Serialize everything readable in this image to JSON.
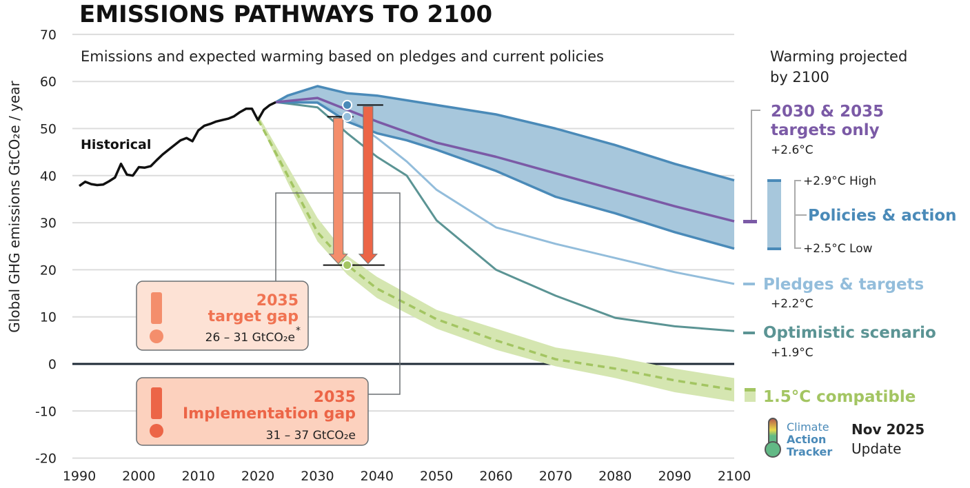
{
  "title": "EMISSIONS PATHWAYS TO 2100",
  "subtitle": "Emissions and expected warming based on pledges and current policies",
  "legend": {
    "header_line1": "Warming projected",
    "header_line2": "by 2100",
    "targets_line1": "2030 & 2035",
    "targets_line2": "targets only",
    "targets_temp": "+2.6°C",
    "policies_high": "+2.9°C High",
    "policies_label": "Policies & action",
    "policies_low": "+2.5°C Low",
    "pledges_label": "Pledges & targets",
    "pledges_temp": "+2.2°C",
    "optimistic_label": "Optimistic scenario",
    "optimistic_temp": "+1.9°C",
    "compatible_label": "1.5°C compatible"
  },
  "gaps": {
    "target": {
      "year": "2035",
      "label": "target gap",
      "range": "26 – 31  GtCO₂e",
      "footnote": "*"
    },
    "implementation": {
      "year": "2035",
      "label": "Implementation gap",
      "range": "31 – 37  GtCO₂e"
    }
  },
  "branding": {
    "logo_line1": "Climate",
    "logo_line2": "Action",
    "logo_line3": "Tracker",
    "date": "Nov 2025",
    "update": "Update"
  },
  "colors": {
    "historical": "#111111",
    "policies_band": "#a7c7dc",
    "policies_edge": "#4a8ab8",
    "targets": "#7b5aa6",
    "pledges": "#93bddb",
    "optimistic": "#5b9494",
    "compatible": "#a3c562",
    "compatible_band": "#d5e6b1",
    "target_gap": "#f48e6c",
    "implementation_gap": "#ec6547"
  },
  "chart_data": {
    "type": "line",
    "title": "EMISSIONS PATHWAYS TO 2100",
    "ylabel": "Global GHG emissions  GtCO₂e / year",
    "xlim": [
      1990,
      2100
    ],
    "ylim": [
      -20,
      70
    ],
    "xticks": [
      "1990",
      "2000",
      "2010",
      "2020",
      "2030",
      "2040",
      "2050",
      "2060",
      "2070",
      "2080",
      "2090",
      "2100"
    ],
    "yticks": [
      "70",
      "60",
      "50",
      "40",
      "30",
      "20",
      "10",
      "0",
      "-10",
      "-20"
    ],
    "grid": true,
    "series": [
      {
        "name": "Historical",
        "key": "historical",
        "x": [
          1990,
          1991,
          1992,
          1993,
          1994,
          1995,
          1996,
          1997,
          1998,
          1999,
          2000,
          2001,
          2002,
          2003,
          2004,
          2005,
          2006,
          2007,
          2008,
          2009,
          2010,
          2011,
          2012,
          2013,
          2014,
          2015,
          2016,
          2017,
          2018,
          2019,
          2020,
          2021,
          2022,
          2023
        ],
        "y": [
          37.8,
          38.7,
          38.2,
          38,
          38.1,
          38.8,
          39.6,
          42.5,
          40.2,
          40,
          41.8,
          41.7,
          42,
          43.3,
          44.5,
          45.5,
          46.5,
          47.5,
          48,
          47.3,
          49.6,
          50.6,
          51,
          51.5,
          51.8,
          52.1,
          52.6,
          53.5,
          54.2,
          54.2,
          51.8,
          54,
          55,
          55.6
        ]
      },
      {
        "name": "Policies & action (high)",
        "key": "policies_high",
        "x": [
          2023,
          2025,
          2030,
          2035,
          2040,
          2050,
          2060,
          2070,
          2080,
          2090,
          2100
        ],
        "y": [
          55.6,
          57,
          59,
          57.5,
          57,
          55,
          53,
          50,
          46.5,
          42.5,
          39
        ]
      },
      {
        "name": "Policies & action (low)",
        "key": "policies_low",
        "x": [
          2023,
          2030,
          2035,
          2040,
          2045,
          2050,
          2060,
          2070,
          2080,
          2090,
          2100
        ],
        "y": [
          55.6,
          55.5,
          51.5,
          49,
          47.5,
          45.5,
          41,
          35.5,
          32,
          28,
          24.5
        ]
      },
      {
        "name": "2030 & 2035 targets only",
        "key": "targets",
        "x": [
          2023,
          2030,
          2035,
          2040,
          2050,
          2060,
          2070,
          2080,
          2090,
          2100
        ],
        "y": [
          55.6,
          56.5,
          54,
          51.5,
          47,
          44,
          40.5,
          37,
          33.5,
          30.3
        ]
      },
      {
        "name": "Pledges & targets",
        "key": "pledges",
        "x": [
          2023,
          2030,
          2035,
          2040,
          2045,
          2050,
          2060,
          2070,
          2080,
          2090,
          2100
        ],
        "y": [
          55.6,
          55.5,
          52.5,
          48,
          43,
          37,
          29,
          25.5,
          22.5,
          19.5,
          17
        ]
      },
      {
        "name": "Optimistic scenario",
        "key": "optimistic",
        "x": [
          2023,
          2025,
          2030,
          2035,
          2040,
          2045,
          2050,
          2060,
          2070,
          2080,
          2090,
          2100
        ],
        "y": [
          55.6,
          55.3,
          54.5,
          49,
          44,
          40,
          30.5,
          20,
          14.5,
          9.8,
          8,
          7
        ]
      },
      {
        "name": "1.5°C compatible",
        "key": "compatible",
        "x": [
          2020,
          2025,
          2030,
          2035,
          2040,
          2050,
          2060,
          2070,
          2080,
          2090,
          2100
        ],
        "y": [
          52,
          40,
          28,
          21,
          16,
          9.5,
          5,
          1,
          -1,
          -3.5,
          -5.5
        ],
        "upper": [
          53,
          42,
          31,
          23,
          18.5,
          11.5,
          7.5,
          3.5,
          1.5,
          -1,
          -3
        ],
        "lower": [
          52,
          38.5,
          26,
          19,
          14,
          7.5,
          3,
          -0.5,
          -3,
          -6,
          -8
        ]
      }
    ],
    "annotations": {
      "historical_label": "Historical",
      "target_gap": {
        "x": 2033.5,
        "from": 52.5,
        "to": 21
      },
      "implementation_gap": {
        "x": 2038.5,
        "from": 55,
        "to": 21
      },
      "markers_2035": [
        55,
        52.5,
        21
      ]
    }
  }
}
